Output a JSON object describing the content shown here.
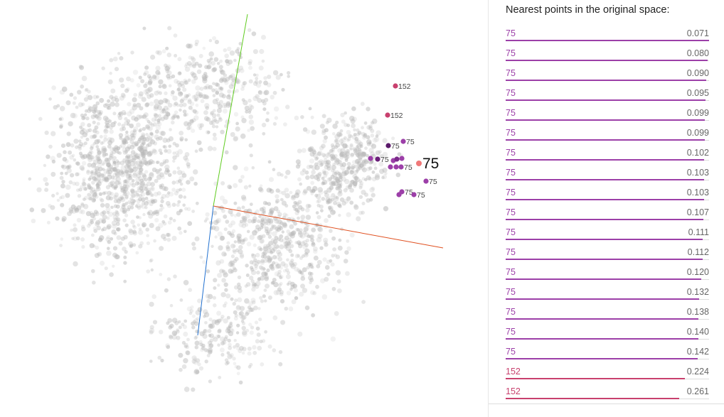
{
  "panel": {
    "title": "Nearest points in the original space:",
    "neighbors": [
      {
        "label": "75",
        "distance": "0.071",
        "value": 0.071,
        "color": "#9c3fa8"
      },
      {
        "label": "75",
        "distance": "0.080",
        "value": 0.08,
        "color": "#9c3fa8"
      },
      {
        "label": "75",
        "distance": "0.090",
        "value": 0.09,
        "color": "#9c3fa8"
      },
      {
        "label": "75",
        "distance": "0.095",
        "value": 0.095,
        "color": "#9c3fa8"
      },
      {
        "label": "75",
        "distance": "0.099",
        "value": 0.099,
        "color": "#9c3fa8"
      },
      {
        "label": "75",
        "distance": "0.099",
        "value": 0.099,
        "color": "#9c3fa8"
      },
      {
        "label": "75",
        "distance": "0.102",
        "value": 0.102,
        "color": "#9c3fa8"
      },
      {
        "label": "75",
        "distance": "0.103",
        "value": 0.103,
        "color": "#9c3fa8"
      },
      {
        "label": "75",
        "distance": "0.103",
        "value": 0.103,
        "color": "#9c3fa8"
      },
      {
        "label": "75",
        "distance": "0.107",
        "value": 0.107,
        "color": "#9c3fa8"
      },
      {
        "label": "75",
        "distance": "0.111",
        "value": 0.111,
        "color": "#9c3fa8"
      },
      {
        "label": "75",
        "distance": "0.112",
        "value": 0.112,
        "color": "#9c3fa8"
      },
      {
        "label": "75",
        "distance": "0.120",
        "value": 0.12,
        "color": "#9c3fa8"
      },
      {
        "label": "75",
        "distance": "0.132",
        "value": 0.132,
        "color": "#9c3fa8"
      },
      {
        "label": "75",
        "distance": "0.138",
        "value": 0.138,
        "color": "#9c3fa8"
      },
      {
        "label": "75",
        "distance": "0.140",
        "value": 0.14,
        "color": "#9c3fa8"
      },
      {
        "label": "75",
        "distance": "0.142",
        "value": 0.142,
        "color": "#9c3fa8"
      },
      {
        "label": "152",
        "distance": "0.224",
        "value": 0.224,
        "color": "#c8406e"
      },
      {
        "label": "152",
        "distance": "0.261",
        "value": 0.261,
        "color": "#c8406e"
      }
    ]
  },
  "projection": {
    "selected_label": "75",
    "point_labels": [
      "152",
      "152",
      "75",
      "75",
      "75",
      "75",
      "75",
      "75",
      "75",
      "75"
    ],
    "colors": {
      "background_points": "#b8b8b8",
      "selected_point": "#f07878",
      "neighbor_75": "#9c3fa8",
      "neighbor_152": "#c8406e",
      "axis_x": "#e05020",
      "axis_y": "#60cc20",
      "axis_z": "#2070d0"
    }
  }
}
